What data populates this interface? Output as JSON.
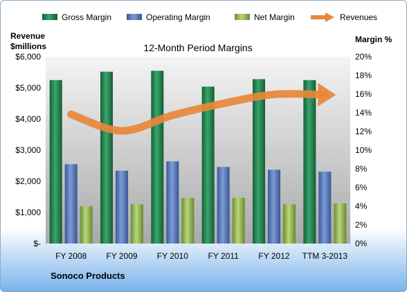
{
  "chart_data": {
    "type": "bar",
    "title": "12-Month Period Margins",
    "company": "Sonoco Products",
    "categories": [
      "FY 2008",
      "FY 2009",
      "FY 2010",
      "FY 2011",
      "FY 2012",
      "TTM 3-2013"
    ],
    "series": [
      {
        "name": "Gross Margin",
        "axis": "right",
        "color": "#1f7a45",
        "values": [
          17.5,
          18.4,
          18.5,
          16.8,
          17.6,
          17.5
        ]
      },
      {
        "name": "Operating Margin",
        "axis": "right",
        "color": "#4f72b8",
        "values": [
          8.5,
          7.8,
          8.8,
          8.2,
          7.9,
          7.7
        ]
      },
      {
        "name": "Net Margin",
        "axis": "right",
        "color": "#8fb04a",
        "values": [
          4.0,
          4.2,
          4.9,
          4.9,
          4.2,
          4.3
        ]
      },
      {
        "name": "Revenues",
        "axis": "left",
        "type": "line",
        "color": "#e8873a",
        "values": [
          4150,
          3620,
          4120,
          4500,
          4790,
          4780
        ]
      }
    ],
    "left_axis": {
      "label_line1": "Revenue",
      "label_line2": "$millions",
      "min": 0,
      "max": 6000,
      "ticks": [
        "$-",
        "$1,000",
        "$2,000",
        "$3,000",
        "$4,000",
        "$5,000",
        "$6,000"
      ]
    },
    "right_axis": {
      "label": "Margin %",
      "min": 0,
      "max": 20,
      "ticks": [
        "0%",
        "2%",
        "4%",
        "6%",
        "8%",
        "10%",
        "12%",
        "14%",
        "16%",
        "18%",
        "20%"
      ]
    },
    "legend_position": "top",
    "grid": false,
    "plot_background": "gradient-gray"
  }
}
